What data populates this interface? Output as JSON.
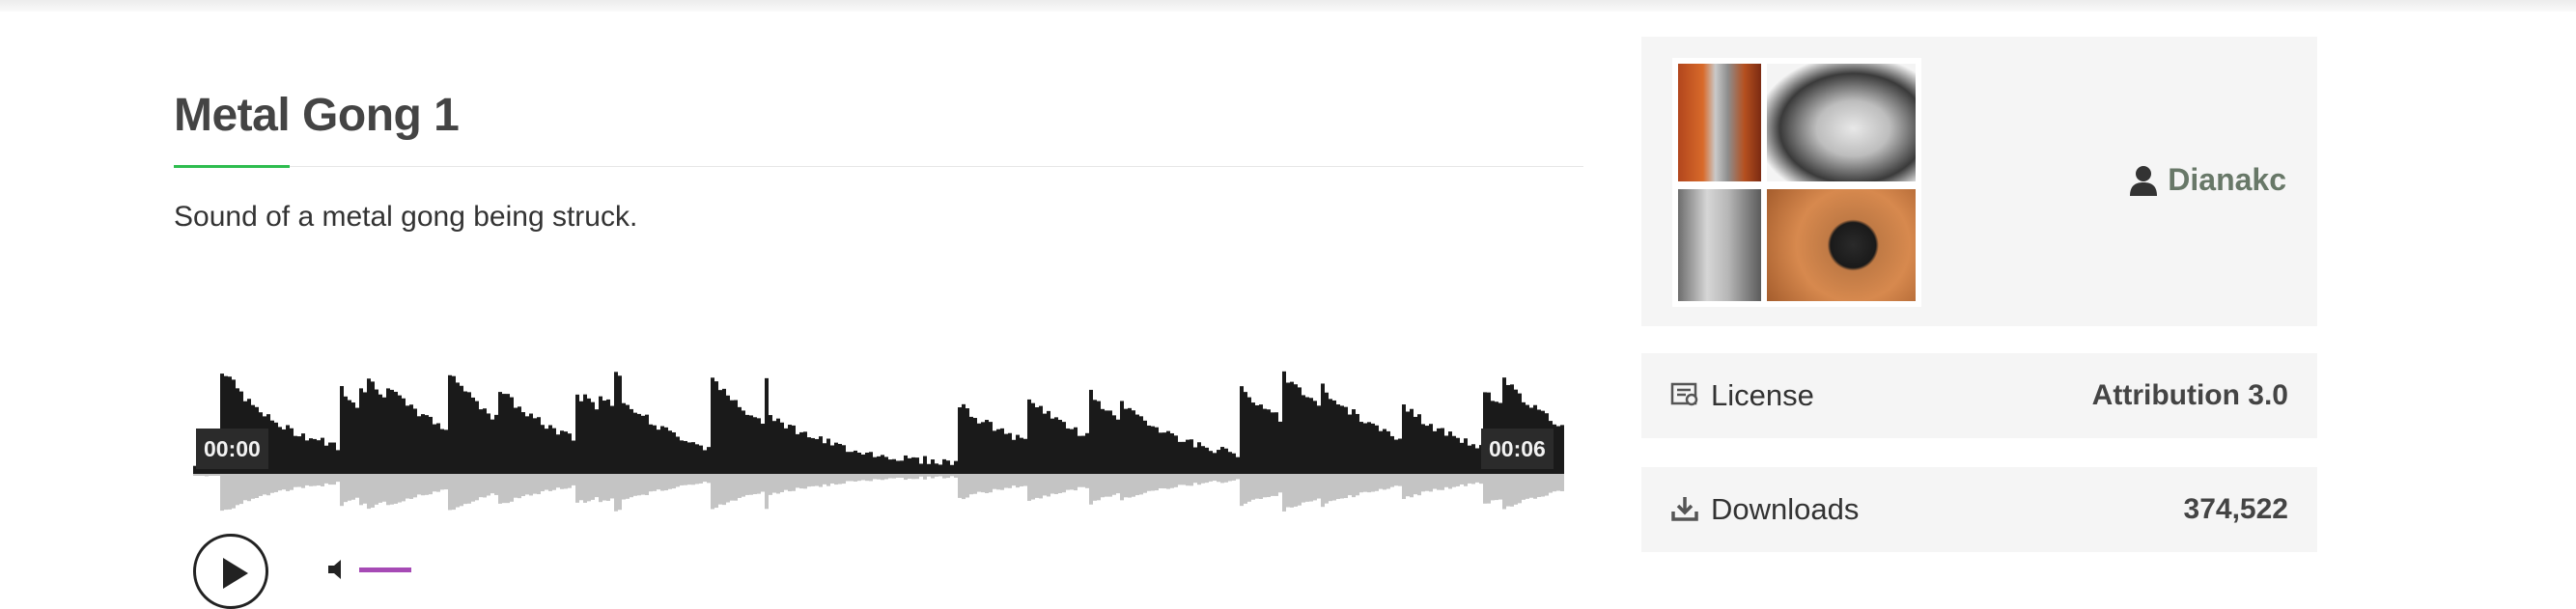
{
  "sound": {
    "title": "Metal Gong 1",
    "description": "Sound of a metal gong being struck."
  },
  "player": {
    "time_start": "00:00",
    "time_end": "00:06"
  },
  "author": {
    "name": "Dianakc",
    "icon": "user-icon"
  },
  "info": {
    "license_label": "License",
    "license_value": "Attribution 3.0",
    "license_icon": "license-icon",
    "downloads_label": "Downloads",
    "downloads_value": "374,522",
    "downloads_icon": "download-icon"
  },
  "colors": {
    "accent_green": "#2ebd4f",
    "author_link": "#687868",
    "volume": "#a64ab5",
    "panel_bg": "#f5f5f5"
  }
}
